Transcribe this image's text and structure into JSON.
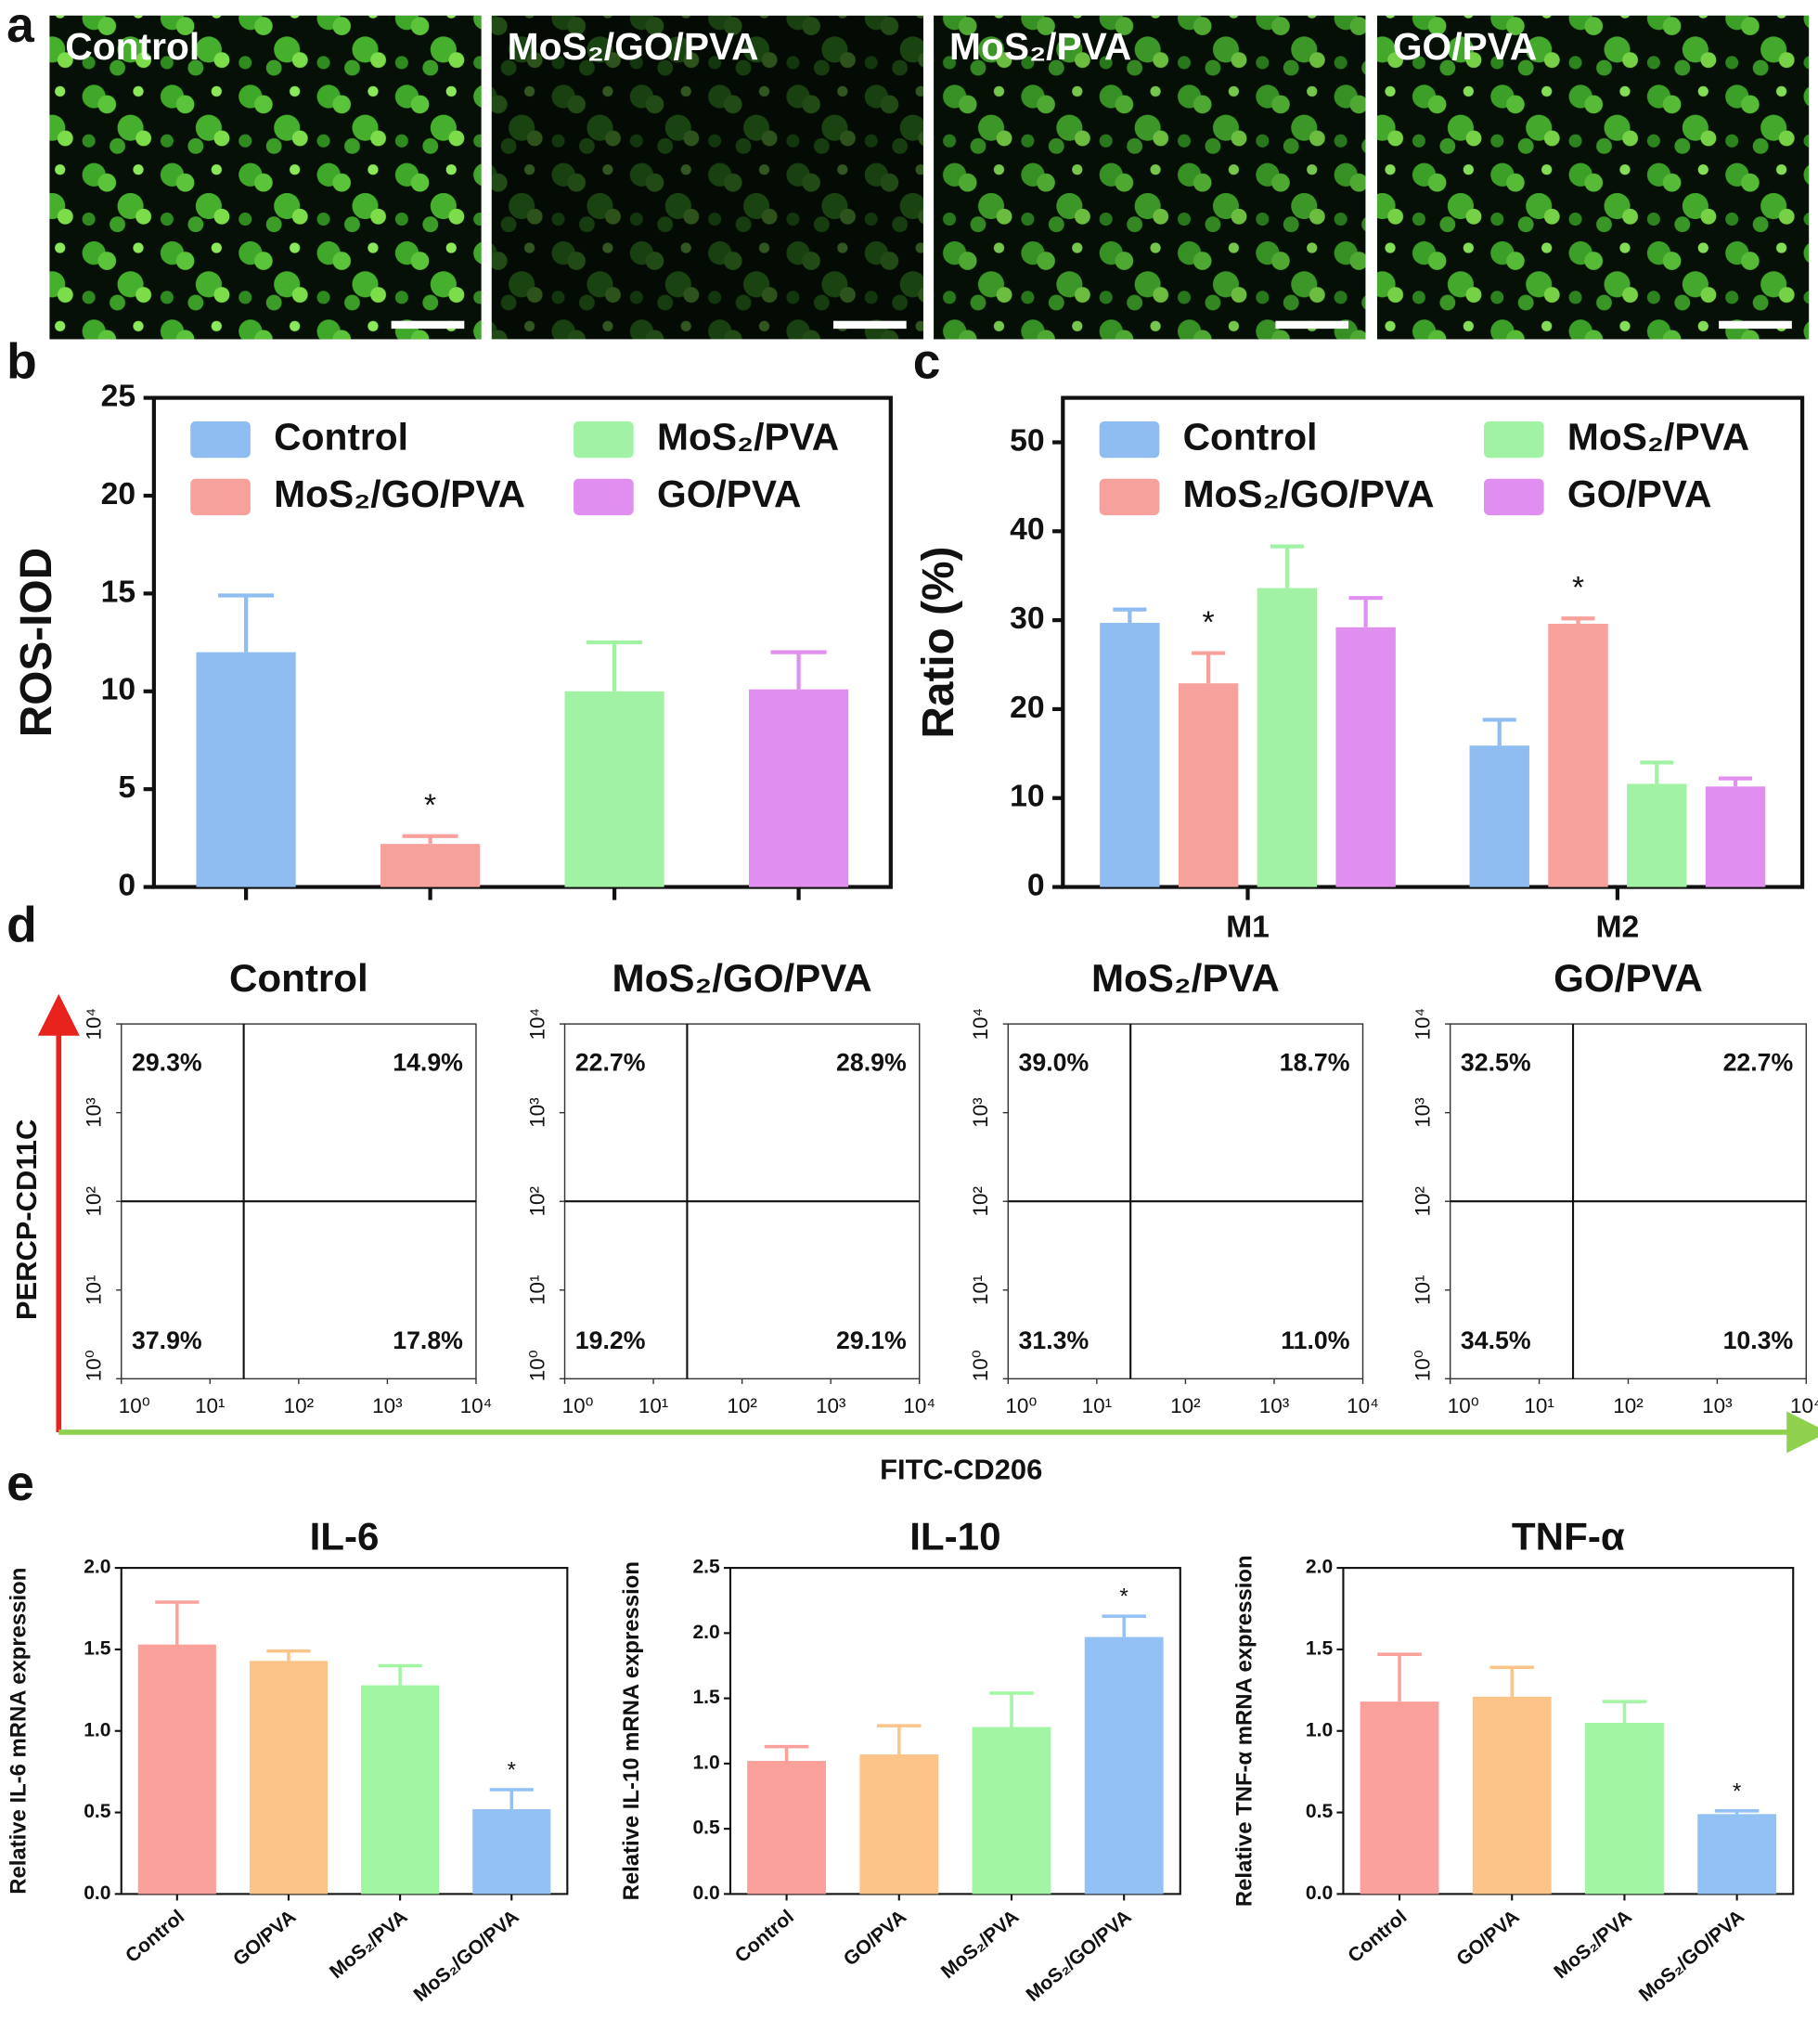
{
  "panel_labels": [
    "a",
    "b",
    "c",
    "d",
    "e"
  ],
  "micrographs": [
    "Control",
    "MoS₂/GO/PVA",
    "MoS₂/PVA",
    "GO/PVA"
  ],
  "flow_axes": {
    "ylabel": "PERCP-CD11C",
    "xlabel": "FITC-CD206"
  },
  "chart_data": [
    {
      "type": "bar",
      "ylabel": "ROS-IOD",
      "categories": [
        null
      ],
      "ylim": [
        0,
        25
      ],
      "yticks": [
        0,
        5,
        10,
        15,
        20,
        25
      ],
      "legend": "top",
      "series": [
        {
          "name": "Control",
          "color": "#8fbdf2",
          "values": [
            12.0
          ],
          "errors": [
            2.9
          ],
          "significance": [
            null
          ]
        },
        {
          "name": "MoS₂/GO/PVA",
          "color": "#f7a19c",
          "values": [
            2.2
          ],
          "errors": [
            0.4
          ],
          "significance": [
            "*"
          ]
        },
        {
          "name": "MoS₂/PVA",
          "color": "#a2f2a6",
          "values": [
            10.0
          ],
          "errors": [
            2.5
          ],
          "significance": [
            null
          ]
        },
        {
          "name": "GO/PVA",
          "color": "#e08ff0",
          "values": [
            10.1
          ],
          "errors": [
            1.9
          ],
          "significance": [
            null
          ]
        }
      ]
    },
    {
      "type": "bar",
      "ylabel": "Ratio (%)",
      "categories": [
        "M1",
        "M2"
      ],
      "ylim": [
        0,
        55
      ],
      "yticks": [
        0,
        10,
        20,
        30,
        40,
        50
      ],
      "legend": "top",
      "series": [
        {
          "name": "Control",
          "color": "#8fbdf2",
          "values": [
            29.7,
            15.9
          ],
          "errors": [
            1.5,
            2.9
          ],
          "significance": [
            null,
            null
          ]
        },
        {
          "name": "MoS₂/GO/PVA",
          "color": "#f7a19c",
          "values": [
            22.9,
            29.6
          ],
          "errors": [
            3.4,
            0.6
          ],
          "significance": [
            "*",
            "*"
          ]
        },
        {
          "name": "MoS₂/PVA",
          "color": "#a2f2a6",
          "values": [
            33.6,
            11.6
          ],
          "errors": [
            4.7,
            2.4
          ],
          "significance": [
            null,
            null
          ]
        },
        {
          "name": "GO/PVA",
          "color": "#e08ff0",
          "values": [
            29.2,
            11.3
          ],
          "errors": [
            3.3,
            0.9
          ],
          "significance": [
            null,
            null
          ]
        }
      ]
    },
    {
      "type": "flow",
      "title": "Control",
      "xscale": "log",
      "yscale": "log",
      "xlim": [
        1,
        10000
      ],
      "ylim": [
        1,
        10000
      ],
      "xticks": [
        {
          "value": 1,
          "label": "10⁰"
        },
        {
          "value": 10,
          "label": "10¹"
        },
        {
          "value": 100,
          "label": "10²"
        },
        {
          "value": 1000,
          "label": "10³"
        },
        {
          "value": 10000,
          "label": "10⁴"
        }
      ],
      "yticks": [
        {
          "value": 1,
          "label": "10⁰"
        },
        {
          "value": 10,
          "label": "10¹"
        },
        {
          "value": 100,
          "label": "10²"
        },
        {
          "value": 1000,
          "label": "10³"
        },
        {
          "value": 10000,
          "label": "10⁴"
        }
      ],
      "gates": {
        "x": 24,
        "y": 100
      },
      "quadrants": {
        "values": [
          29.3,
          14.9,
          37.9,
          17.8
        ],
        "value_labels": [
          "29.3%",
          "14.9%",
          "37.9%",
          "17.8%"
        ]
      }
    },
    {
      "type": "flow",
      "title": "MoS₂/GO/PVA",
      "xscale": "log",
      "yscale": "log",
      "xlim": [
        1,
        10000
      ],
      "ylim": [
        1,
        10000
      ],
      "xticks": [
        {
          "value": 1,
          "label": "10⁰"
        },
        {
          "value": 10,
          "label": "10¹"
        },
        {
          "value": 100,
          "label": "10²"
        },
        {
          "value": 1000,
          "label": "10³"
        },
        {
          "value": 10000,
          "label": "10⁴"
        }
      ],
      "yticks": [
        {
          "value": 1,
          "label": "10⁰"
        },
        {
          "value": 10,
          "label": "10¹"
        },
        {
          "value": 100,
          "label": "10²"
        },
        {
          "value": 1000,
          "label": "10³"
        },
        {
          "value": 10000,
          "label": "10⁴"
        }
      ],
      "gates": {
        "x": 24,
        "y": 100
      },
      "quadrants": {
        "values": [
          22.7,
          28.9,
          19.2,
          29.1
        ],
        "value_labels": [
          "22.7%",
          "28.9%",
          "19.2%",
          "29.1%"
        ]
      }
    },
    {
      "type": "flow",
      "title": "MoS₂/PVA",
      "xscale": "log",
      "yscale": "log",
      "xlim": [
        1,
        10000
      ],
      "ylim": [
        1,
        10000
      ],
      "xticks": [
        {
          "value": 1,
          "label": "10⁰"
        },
        {
          "value": 10,
          "label": "10¹"
        },
        {
          "value": 100,
          "label": "10²"
        },
        {
          "value": 1000,
          "label": "10³"
        },
        {
          "value": 10000,
          "label": "10⁴"
        }
      ],
      "yticks": [
        {
          "value": 1,
          "label": "10⁰"
        },
        {
          "value": 10,
          "label": "10¹"
        },
        {
          "value": 100,
          "label": "10²"
        },
        {
          "value": 1000,
          "label": "10³"
        },
        {
          "value": 10000,
          "label": "10⁴"
        }
      ],
      "gates": {
        "x": 24,
        "y": 100
      },
      "quadrants": {
        "values": [
          39.0,
          18.7,
          31.3,
          11.0
        ],
        "value_labels": [
          "39.0%",
          "18.7%",
          "31.3%",
          "11.0%"
        ]
      }
    },
    {
      "type": "flow",
      "title": "GO/PVA",
      "xscale": "log",
      "yscale": "log",
      "xlim": [
        1,
        10000
      ],
      "ylim": [
        1,
        10000
      ],
      "xticks": [
        {
          "value": 1,
          "label": "10⁰"
        },
        {
          "value": 10,
          "label": "10¹"
        },
        {
          "value": 100,
          "label": "10²"
        },
        {
          "value": 1000,
          "label": "10³"
        },
        {
          "value": 10000,
          "label": "10⁴"
        }
      ],
      "yticks": [
        {
          "value": 1,
          "label": "10⁰"
        },
        {
          "value": 10,
          "label": "10¹"
        },
        {
          "value": 100,
          "label": "10²"
        },
        {
          "value": 1000,
          "label": "10³"
        },
        {
          "value": 10000,
          "label": "10⁴"
        }
      ],
      "gates": {
        "x": 24,
        "y": 100
      },
      "quadrants": {
        "values": [
          32.5,
          22.7,
          34.5,
          10.3
        ],
        "value_labels": [
          "32.5%",
          "22.7%",
          "34.5%",
          "10.3%"
        ]
      }
    },
    {
      "type": "bar",
      "title": "IL-6",
      "ylabel": "Relative IL-6 mRNA expression",
      "categories": [
        "Control",
        "GO/PVA",
        "MoS₂/PVA",
        "MoS₂/GO/PVA"
      ],
      "values": [
        1.53,
        1.43,
        1.28,
        0.52
      ],
      "errors": [
        0.26,
        0.06,
        0.12,
        0.12
      ],
      "significance": [
        null,
        null,
        null,
        "*"
      ],
      "colors": [
        "#f9a19a",
        "#fdc48a",
        "#a2f5a3",
        "#93c1f5"
      ],
      "ylim": [
        0,
        2
      ],
      "yticks": [
        {
          "value": 0,
          "label": "0.0"
        },
        0.5,
        {
          "value": 1,
          "label": "1.0"
        },
        1.5,
        {
          "value": 2,
          "label": "2.0"
        }
      ]
    },
    {
      "type": "bar",
      "title": "IL-10",
      "ylabel": "Relative IL-10 mRNA expression",
      "categories": [
        "Control",
        "GO/PVA",
        "MoS₂/PVA",
        "MoS₂/GO/PVA"
      ],
      "values": [
        1.02,
        1.07,
        1.28,
        1.97
      ],
      "errors": [
        0.11,
        0.22,
        0.26,
        0.16
      ],
      "significance": [
        null,
        null,
        null,
        "*"
      ],
      "colors": [
        "#f9a19a",
        "#fdc48a",
        "#a2f5a3",
        "#93c1f5"
      ],
      "ylim": [
        0,
        2.5
      ],
      "yticks": [
        {
          "value": 0,
          "label": "0.0"
        },
        0.5,
        {
          "value": 1,
          "label": "1.0"
        },
        1.5,
        {
          "value": 2,
          "label": "2.0"
        },
        2.5
      ]
    },
    {
      "type": "bar",
      "title": "TNF-α",
      "ylabel": "Relative TNF-α mRNA expression",
      "categories": [
        "Control",
        "GO/PVA",
        "MoS₂/PVA",
        "MoS₂/GO/PVA"
      ],
      "values": [
        1.18,
        1.21,
        1.05,
        0.49
      ],
      "errors": [
        0.29,
        0.18,
        0.13,
        0.02
      ],
      "significance": [
        null,
        null,
        null,
        "*"
      ],
      "colors": [
        "#f9a19a",
        "#fdc48a",
        "#a2f5a3",
        "#93c1f5"
      ],
      "ylim": [
        0,
        2
      ],
      "yticks": [
        {
          "value": 0,
          "label": "0.0"
        },
        0.5,
        {
          "value": 1,
          "label": "1.0"
        },
        1.5,
        {
          "value": 2,
          "label": "2.0"
        }
      ]
    }
  ]
}
